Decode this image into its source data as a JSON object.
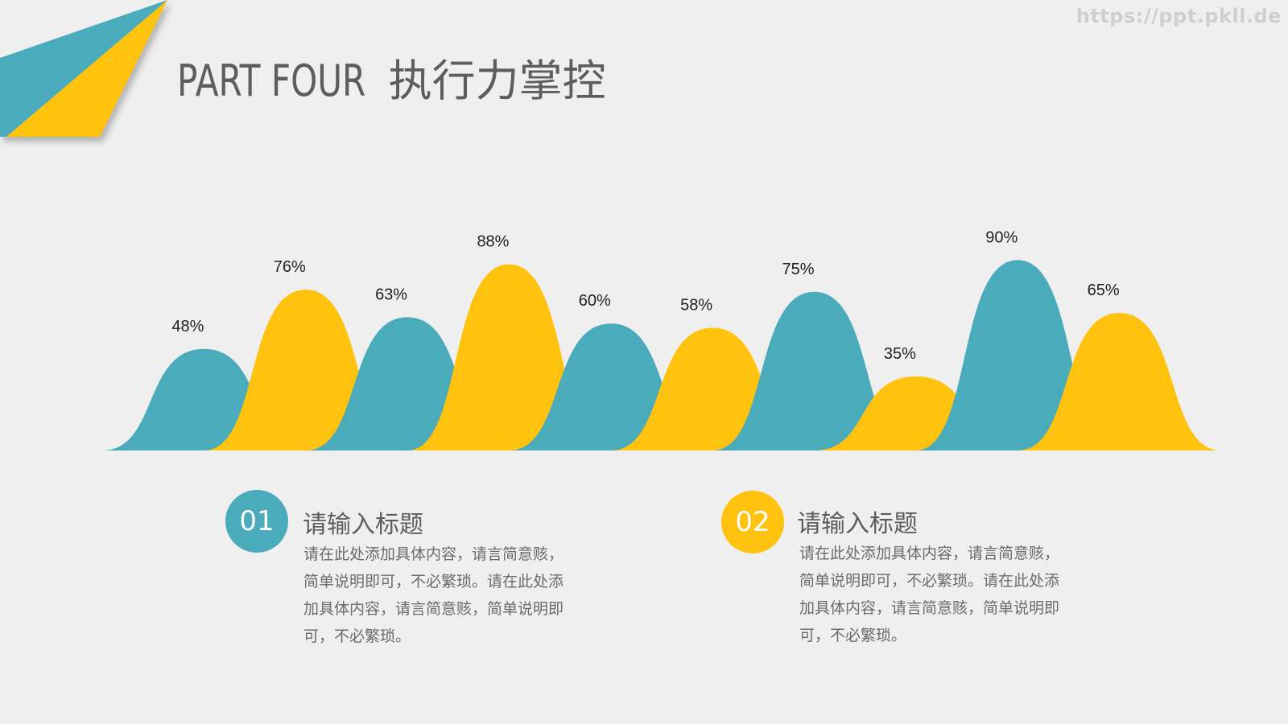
{
  "watermark": "https://ppt.pkll.de",
  "header": {
    "title_latin": "PART FOUR",
    "title_cn": "执行力掌控"
  },
  "colors": {
    "teal": "#4aabbb",
    "yellow": "#ffc20e",
    "background": "#efeff0",
    "text": "#5d5d5d"
  },
  "chart_data": {
    "type": "area",
    "categories": [
      "",
      "",
      "",
      "",
      "",
      "",
      "",
      "",
      "",
      ""
    ],
    "values": [
      48,
      76,
      63,
      88,
      60,
      58,
      75,
      35,
      90,
      65
    ],
    "labels": [
      "48%",
      "76%",
      "63%",
      "88%",
      "60%",
      "58%",
      "75%",
      "35%",
      "90%",
      "65%"
    ],
    "colors": [
      "#4aabbb",
      "#ffc20e",
      "#4aabbb",
      "#ffc20e",
      "#4aabbb",
      "#ffc20e",
      "#4aabbb",
      "#ffc20e",
      "#4aabbb",
      "#ffc20e"
    ],
    "ylim": [
      0,
      100
    ],
    "title": "",
    "xlabel": "",
    "ylabel": ""
  },
  "items": [
    {
      "number": "01",
      "title": "请输入标题",
      "lines": [
        "请在此处添加具体内容，请言简意赅，",
        "简单说明即可，不必繁琐。请在此处添",
        "加具体内容，请言简意赅，简单说明即",
        "可，不必繁琐。"
      ],
      "color": "#4aabbb"
    },
    {
      "number": "02",
      "title": "请输入标题",
      "lines": [
        "请在此处添加具体内容，请言简意赅，",
        "简单说明即可，不必繁琐。请在此处添",
        "加具体内容，请言简意赅，简单说明即",
        "可，不必繁琐。"
      ],
      "color": "#ffc20e"
    }
  ]
}
